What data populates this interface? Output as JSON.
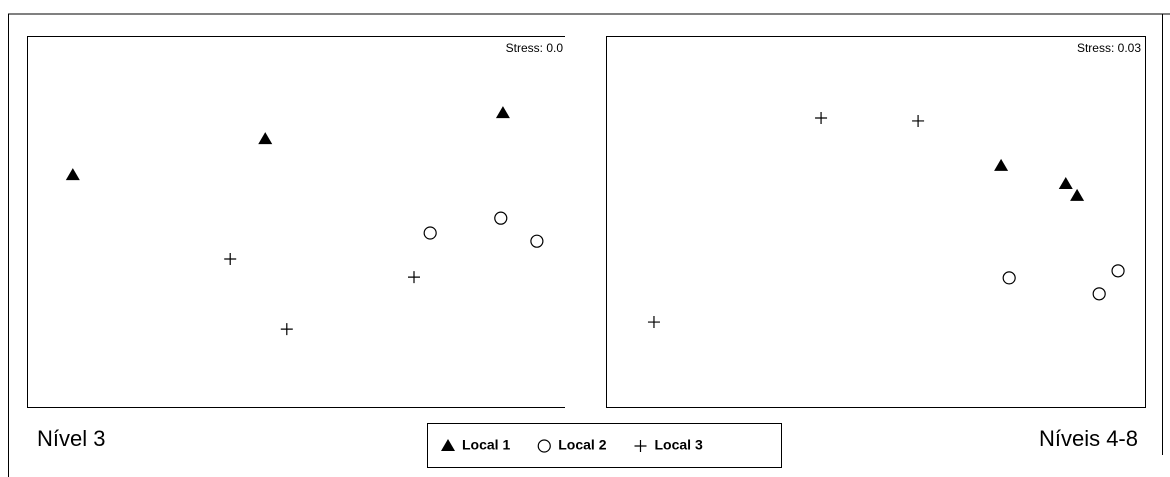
{
  "chart_data": [
    {
      "type": "scatter",
      "label": "Nível 3",
      "stress": "Stress: 0.0",
      "xlim": [
        0,
        100
      ],
      "ylim": [
        0,
        100
      ],
      "series": [
        {
          "marker": "triangle",
          "color": "#000000",
          "x": [
            8.5,
            44.2,
            88.3
          ],
          "values": [
            62.5,
            72.2,
            79.2
          ]
        },
        {
          "marker": "circle",
          "color": "#000000",
          "x": [
            74.8,
            87.9,
            94.6
          ],
          "values": [
            46.9,
            50.9,
            44.7
          ]
        },
        {
          "marker": "plus",
          "color": "#000000",
          "x": [
            37.7,
            48.2,
            71.8
          ],
          "values": [
            39.9,
            21.0,
            35.0
          ]
        }
      ]
    },
    {
      "type": "scatter",
      "label": "Níveis 4-8",
      "stress": "Stress: 0.03",
      "xlim": [
        0,
        100
      ],
      "ylim": [
        0,
        100
      ],
      "series": [
        {
          "marker": "triangle",
          "color": "#000000",
          "x": [
            73.3,
            85.3,
            87.4
          ],
          "values": [
            65.0,
            60.1,
            56.9
          ]
        },
        {
          "marker": "circle",
          "color": "#000000",
          "x": [
            74.8,
            91.5,
            95.0
          ],
          "values": [
            34.8,
            30.5,
            36.7
          ]
        },
        {
          "marker": "plus",
          "color": "#000000",
          "x": [
            8.9,
            39.9,
            57.9
          ],
          "values": [
            22.9,
            77.9,
            77.1
          ]
        }
      ]
    }
  ],
  "legend": {
    "items": [
      "Local 1",
      "Local 2",
      "Local 3"
    ]
  }
}
